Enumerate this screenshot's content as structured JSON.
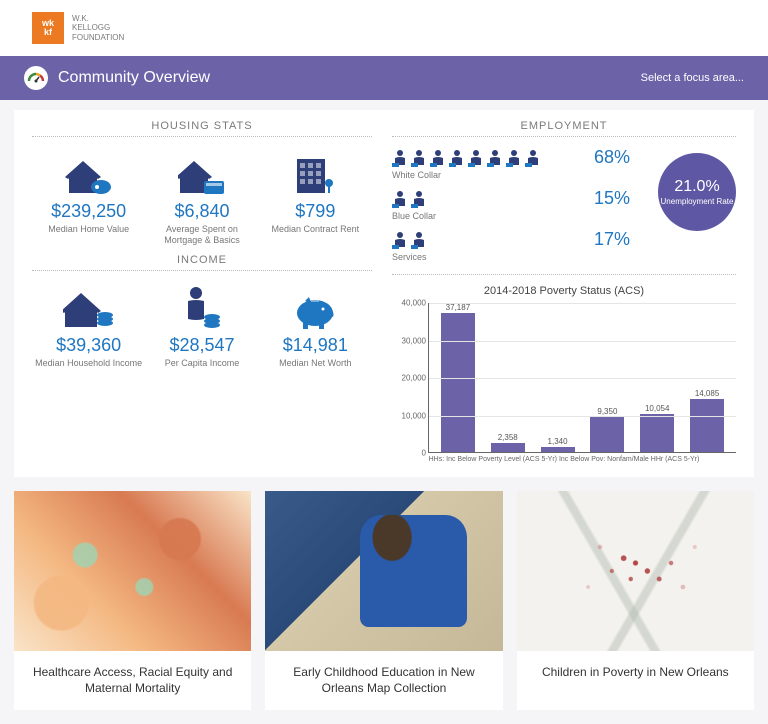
{
  "brand": {
    "square_text": "wk\nkf",
    "name_line1": "W.K.",
    "name_line2": "KELLOGG",
    "name_line3": "FOUNDATION",
    "square_bg": "#ec7a23"
  },
  "header": {
    "title": "Community Overview",
    "focus_link": "Select a focus area...",
    "bg": "#6b62a8"
  },
  "housing": {
    "title": "HOUSING STATS",
    "metrics": [
      {
        "value": "$239,250",
        "label": "Median Home Value"
      },
      {
        "value": "$6,840",
        "label": "Average Spent on Mortgage & Basics"
      },
      {
        "value": "$799",
        "label": "Median Contract Rent"
      }
    ]
  },
  "income": {
    "title": "INCOME",
    "metrics": [
      {
        "value": "$39,360",
        "label": "Median Household Income"
      },
      {
        "value": "$28,547",
        "label": "Per Capita Income"
      },
      {
        "value": "$14,981",
        "label": "Median Net Worth"
      }
    ]
  },
  "employment": {
    "title": "EMPLOYMENT",
    "rows": [
      {
        "label": "White Collar",
        "pct": "68%",
        "icons": 8
      },
      {
        "label": "Blue Collar",
        "pct": "15%",
        "icons": 2
      },
      {
        "label": "Services",
        "pct": "17%",
        "icons": 2
      }
    ],
    "unemployment": {
      "value": "21.0%",
      "label": "Unemployment Rate",
      "bg": "#5e57a3"
    }
  },
  "poverty_chart": {
    "title": "2014-2018 Poverty Status (ACS)",
    "type": "bar",
    "ymax": 40000,
    "ytick_step": 10000,
    "yticks": [
      "0",
      "10,000",
      "20,000",
      "30,000",
      "40,000"
    ],
    "bars": [
      {
        "label": "37,187",
        "value": 37187
      },
      {
        "label": "2,358",
        "value": 2358
      },
      {
        "label": "1,340",
        "value": 1340
      },
      {
        "label": "9,350",
        "value": 9350
      },
      {
        "label": "10,054",
        "value": 10054
      },
      {
        "label": "14,085",
        "value": 14085
      }
    ],
    "xlabel": "HHs: Inc Below Poverty Level (ACS 5-Yr) Inc Below Pov: Nonfam/Male HHr (ACS 5-Yr)",
    "bar_color": "#6b62a8",
    "grid_color": "#e5e5e5"
  },
  "cards": [
    {
      "title": "Healthcare Access, Racial Equity and Maternal Mortality",
      "imgClass": "map1"
    },
    {
      "title": "Early Childhood Education in New Orleans Map Collection",
      "imgClass": "photo"
    },
    {
      "title": "Children in Poverty in New Orleans",
      "imgClass": "map2"
    }
  ],
  "colors": {
    "accent_blue": "#1f76c1",
    "icon_navy": "#2d3e78",
    "icon_blue": "#1f76c1",
    "text_gray": "#7a7a7a"
  }
}
